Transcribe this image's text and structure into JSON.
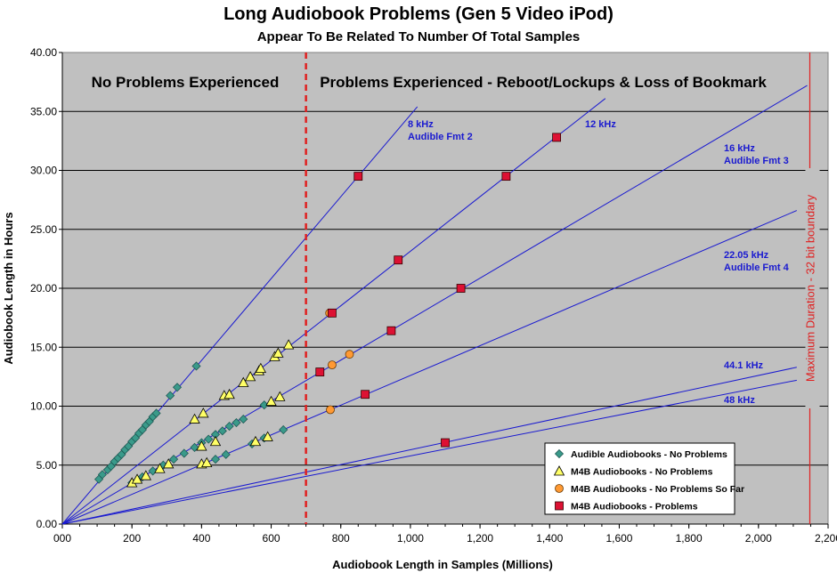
{
  "chart_data": {
    "type": "scatter",
    "title": "Long Audiobook Problems (Gen 5 Video iPod)",
    "subtitle": "Appear To Be Related To Number Of Total Samples",
    "xlabel": "Audiobook Length in Samples (Millions)",
    "ylabel": "Audiobook Length in Hours",
    "xlim": [
      0,
      2200
    ],
    "ylim": [
      0,
      40
    ],
    "x_ticks": [
      "000",
      "200",
      "400",
      "600",
      "800",
      "1,000",
      "1,200",
      "1,400",
      "1,600",
      "1,800",
      "2,000",
      "2,200"
    ],
    "y_ticks": [
      "0.00",
      "5.00",
      "10.00",
      "15.00",
      "20.00",
      "25.00",
      "30.00",
      "35.00",
      "40.00"
    ],
    "grid": "horizontal",
    "legend_position": "bottom-right",
    "region_labels": {
      "left": "No Problems Experienced",
      "right": "Problems Experienced - Reboot/Lockups & Loss of Bookmark"
    },
    "vertical_lines": [
      {
        "x": 700,
        "style": "dashed",
        "color": "#e02020"
      },
      {
        "x": 2147.5,
        "style": "solid",
        "color": "#e02020",
        "label": "Maximum Duration - 32 bit boundary"
      }
    ],
    "trend_lines": [
      {
        "label": [
          "8 kHz",
          "Audible Fmt 2"
        ],
        "x_end": 1020,
        "y_end": 35.4
      },
      {
        "label": [
          "12 kHz"
        ],
        "x_end": 1560,
        "y_end": 36.1
      },
      {
        "label": [
          "16 kHz",
          "Audible Fmt 3"
        ],
        "x_end": 2140,
        "y_end": 37.2
      },
      {
        "label": [
          "22.05 kHz",
          "Audible Fmt 4"
        ],
        "x_end": 2110,
        "y_end": 26.6
      },
      {
        "label": [
          "44.1 kHz"
        ],
        "x_end": 2110,
        "y_end": 13.3
      },
      {
        "label": [
          "48 kHz"
        ],
        "x_end": 2110,
        "y_end": 12.2
      }
    ],
    "series": [
      {
        "name": "Audible Audiobooks - No Problems",
        "marker": "diamond",
        "color": "#3a9a8a",
        "points": [
          [
            105,
            3.8
          ],
          [
            115,
            4.2
          ],
          [
            130,
            4.6
          ],
          [
            140,
            4.9
          ],
          [
            150,
            5.3
          ],
          [
            160,
            5.6
          ],
          [
            170,
            5.9
          ],
          [
            180,
            6.3
          ],
          [
            190,
            6.6
          ],
          [
            200,
            7.0
          ],
          [
            210,
            7.3
          ],
          [
            220,
            7.7
          ],
          [
            230,
            8.0
          ],
          [
            240,
            8.4
          ],
          [
            250,
            8.7
          ],
          [
            260,
            9.1
          ],
          [
            270,
            9.4
          ],
          [
            310,
            10.9
          ],
          [
            330,
            11.6
          ],
          [
            385,
            13.4
          ],
          [
            200,
            3.5
          ],
          [
            230,
            4.0
          ],
          [
            260,
            4.5
          ],
          [
            290,
            5.0
          ],
          [
            320,
            5.5
          ],
          [
            350,
            6.0
          ],
          [
            380,
            6.5
          ],
          [
            400,
            6.9
          ],
          [
            420,
            7.2
          ],
          [
            440,
            7.6
          ],
          [
            460,
            7.9
          ],
          [
            480,
            8.3
          ],
          [
            500,
            8.6
          ],
          [
            520,
            8.9
          ],
          [
            545,
            6.8
          ],
          [
            580,
            7.3
          ],
          [
            635,
            8.0
          ],
          [
            580,
            10.1
          ],
          [
            440,
            5.5
          ],
          [
            470,
            5.9
          ]
        ]
      },
      {
        "name": "M4B Audiobooks - No Problems",
        "marker": "triangle",
        "color": "#ffff66",
        "points": [
          [
            200,
            3.5
          ],
          [
            215,
            3.8
          ],
          [
            240,
            4.1
          ],
          [
            280,
            4.7
          ],
          [
            305,
            5.1
          ],
          [
            380,
            8.9
          ],
          [
            405,
            9.4
          ],
          [
            400,
            5.1
          ],
          [
            415,
            5.2
          ],
          [
            465,
            10.9
          ],
          [
            480,
            11.0
          ],
          [
            520,
            12.0
          ],
          [
            540,
            12.5
          ],
          [
            565,
            13.0
          ],
          [
            570,
            13.2
          ],
          [
            610,
            14.2
          ],
          [
            620,
            14.5
          ],
          [
            650,
            15.2
          ],
          [
            555,
            7.0
          ],
          [
            590,
            7.4
          ],
          [
            600,
            10.4
          ],
          [
            625,
            10.8
          ],
          [
            400,
            6.6
          ],
          [
            440,
            7.0
          ]
        ]
      },
      {
        "name": "M4B Audiobooks - No Problems So Far",
        "marker": "circle",
        "color": "#ff9933",
        "points": [
          [
            770,
            9.7
          ],
          [
            775,
            13.5
          ],
          [
            825,
            14.4
          ],
          [
            768,
            17.9
          ]
        ]
      },
      {
        "name": "M4B Audiobooks - Problems",
        "marker": "square",
        "color": "#dd1133",
        "points": [
          [
            850,
            29.5
          ],
          [
            965,
            22.4
          ],
          [
            1275,
            29.5
          ],
          [
            1420,
            32.8
          ],
          [
            775,
            17.9
          ],
          [
            1145,
            20.0
          ],
          [
            740,
            12.9
          ],
          [
            945,
            16.4
          ],
          [
            870,
            11.0
          ],
          [
            1100,
            6.9
          ]
        ]
      }
    ]
  }
}
